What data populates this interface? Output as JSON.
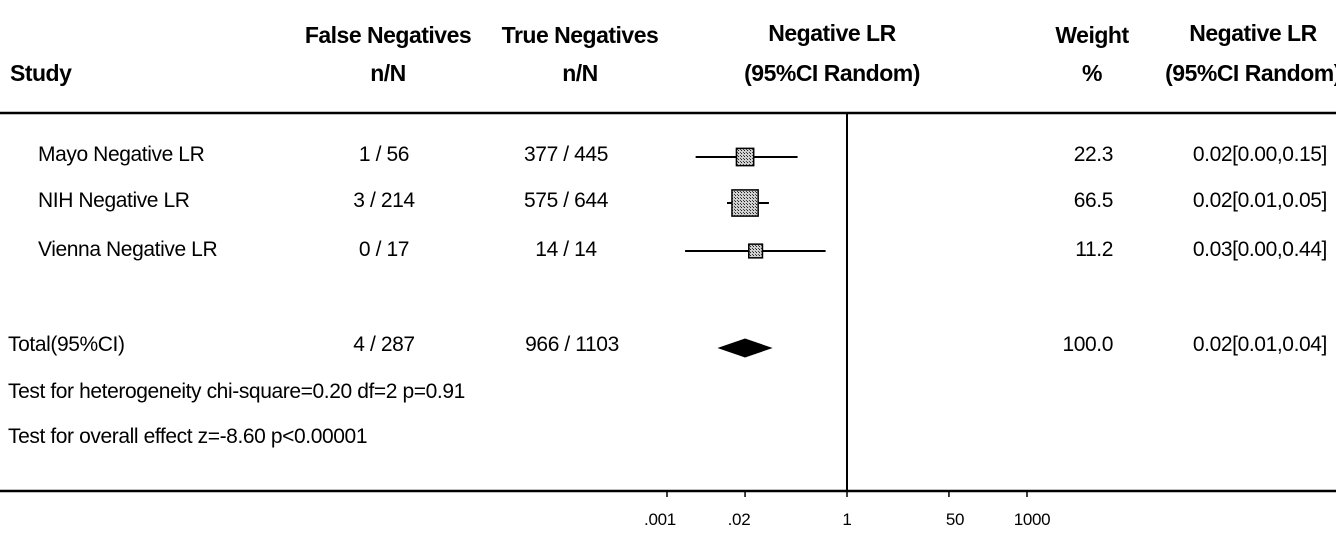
{
  "headers": {
    "study": "Study",
    "fn_line1": "False Negatives",
    "fn_line2": "n/N",
    "tn_line1": "True Negatives",
    "tn_line2": "n/N",
    "lr_line1": "Negative LR",
    "lr_line2": "(95%CI Random)",
    "weight_line1": "Weight",
    "weight_line2": "%",
    "lr2_line1": "Negative LR",
    "lr2_line2": "(95%CI Random)"
  },
  "studies": [
    {
      "name": "Mayo Negative LR",
      "fn": "1 / 56",
      "tn": "377 / 445",
      "weight": "22.3",
      "ci_text": "0.02[0.00,0.15]"
    },
    {
      "name": "NIH Negative LR",
      "fn": "3 / 214",
      "tn": "575 / 644",
      "weight": "66.5",
      "ci_text": "0.02[0.01,0.05]"
    },
    {
      "name": "Vienna Negative LR",
      "fn": "0 / 17",
      "tn": "14 / 14",
      "weight": "11.2",
      "ci_text": "0.03[0.00,0.44]"
    }
  ],
  "total": {
    "name": "Total(95%CI)",
    "fn": "4 / 287",
    "tn": "966 / 1103",
    "weight": "100.0",
    "ci_text": "0.02[0.01,0.04]"
  },
  "notes": {
    "heterogeneity": "Test for heterogeneity chi-square=0.20  df=2  p=0.91",
    "overall": "Test for overall effect  z=-8.60  p<0.00001"
  },
  "chart_data": {
    "type": "forest",
    "scale": "log",
    "xlim": [
      0.001,
      1000
    ],
    "ticks": [
      ".001",
      ".02",
      "1",
      "50",
      "1000"
    ],
    "tick_values": [
      0.001,
      0.02,
      1,
      50,
      1000
    ],
    "reference_line": 1,
    "studies": [
      {
        "estimate": 0.02,
        "lower": 0.003,
        "upper": 0.15,
        "weight": 22.3
      },
      {
        "estimate": 0.02,
        "lower": 0.01,
        "upper": 0.05,
        "weight": 66.5
      },
      {
        "estimate": 0.03,
        "lower": 0.002,
        "upper": 0.44,
        "weight": 11.2
      }
    ],
    "total": {
      "estimate": 0.02,
      "lower": 0.01,
      "upper": 0.04
    }
  }
}
